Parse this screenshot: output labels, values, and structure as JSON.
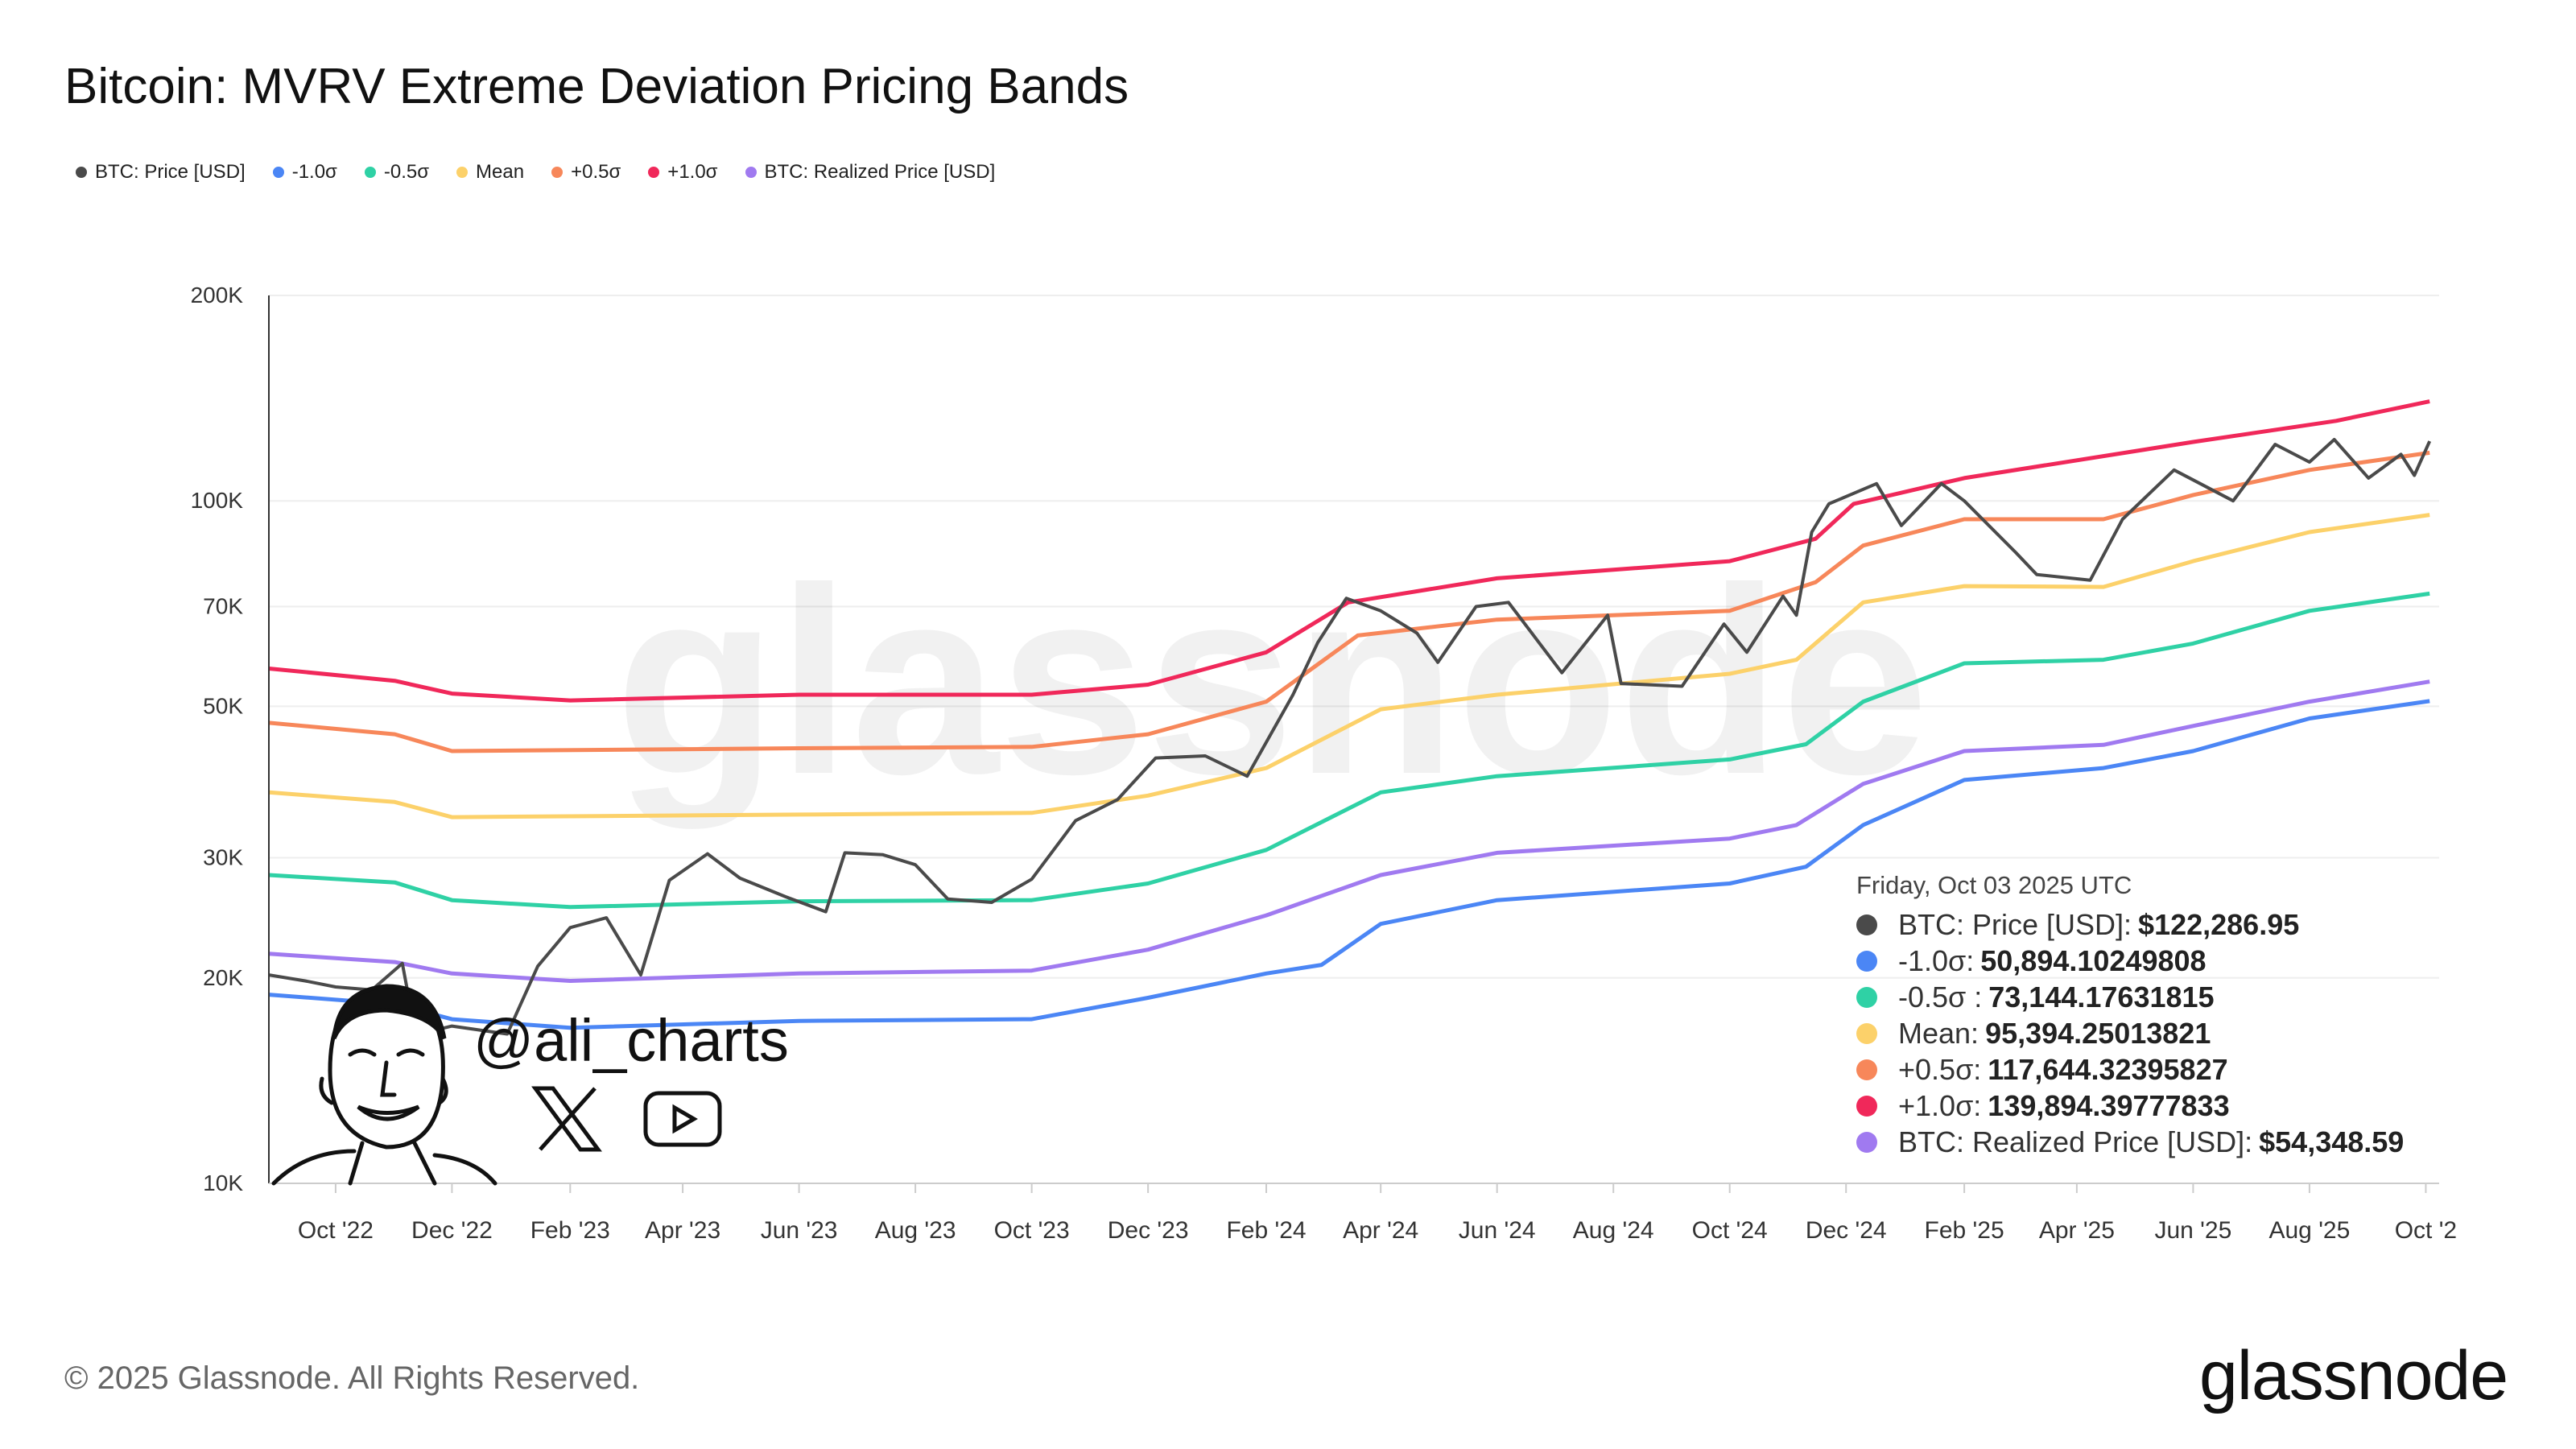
{
  "chart_data": {
    "type": "line",
    "title": "Bitcoin: MVRV Extreme Deviation Pricing Bands",
    "y_scale": "log",
    "ylim": [
      10000,
      200000
    ],
    "y_ticks": [
      {
        "v": 10000,
        "label": "10K"
      },
      {
        "v": 20000,
        "label": "20K"
      },
      {
        "v": 30000,
        "label": "30K"
      },
      {
        "v": 50000,
        "label": "50K"
      },
      {
        "v": 70000,
        "label": "70K"
      },
      {
        "v": 100000,
        "label": "100K"
      },
      {
        "v": 200000,
        "label": "200K"
      }
    ],
    "xlim": [
      "2022-08-27",
      "2025-10-08"
    ],
    "x_ticks": [
      {
        "d": "2022-10-01",
        "label": "Oct '22"
      },
      {
        "d": "2022-12-01",
        "label": "Dec '22"
      },
      {
        "d": "2023-02-01",
        "label": "Feb '23"
      },
      {
        "d": "2023-04-01",
        "label": "Apr '23"
      },
      {
        "d": "2023-06-01",
        "label": "Jun '23"
      },
      {
        "d": "2023-08-01",
        "label": "Aug '23"
      },
      {
        "d": "2023-10-01",
        "label": "Oct '23"
      },
      {
        "d": "2023-12-01",
        "label": "Dec '23"
      },
      {
        "d": "2024-02-01",
        "label": "Feb '24"
      },
      {
        "d": "2024-04-01",
        "label": "Apr '24"
      },
      {
        "d": "2024-06-01",
        "label": "Jun '24"
      },
      {
        "d": "2024-08-01",
        "label": "Aug '24"
      },
      {
        "d": "2024-10-01",
        "label": "Oct '24"
      },
      {
        "d": "2024-12-01",
        "label": "Dec '24"
      },
      {
        "d": "2025-02-01",
        "label": "Feb '25"
      },
      {
        "d": "2025-04-01",
        "label": "Apr '25"
      },
      {
        "d": "2025-06-01",
        "label": "Jun '25"
      },
      {
        "d": "2025-08-01",
        "label": "Aug '25"
      },
      {
        "d": "2025-10-01",
        "label": "Oct '2"
      }
    ],
    "grid": true,
    "legend_position": "top-left",
    "series": [
      {
        "name": "+1.0σ",
        "color": "#f0285a",
        "points": [
          [
            "2022-08-27",
            56800
          ],
          [
            "2022-11-01",
            54500
          ],
          [
            "2022-12-01",
            52200
          ],
          [
            "2023-02-01",
            51000
          ],
          [
            "2023-06-01",
            52000
          ],
          [
            "2023-10-01",
            52000
          ],
          [
            "2023-12-01",
            53800
          ],
          [
            "2024-02-01",
            60000
          ],
          [
            "2024-03-15",
            71000
          ],
          [
            "2024-06-01",
            77000
          ],
          [
            "2024-10-01",
            81600
          ],
          [
            "2024-11-15",
            88000
          ],
          [
            "2024-12-05",
            99000
          ],
          [
            "2025-02-01",
            108000
          ],
          [
            "2025-06-01",
            122000
          ],
          [
            "2025-08-15",
            131000
          ],
          [
            "2025-10-03",
            139894.39777833
          ]
        ]
      },
      {
        "name": "+0.5σ",
        "color": "#f7875a",
        "points": [
          [
            "2022-08-27",
            47300
          ],
          [
            "2022-11-01",
            45500
          ],
          [
            "2022-12-01",
            43000
          ],
          [
            "2023-06-01",
            43400
          ],
          [
            "2023-10-01",
            43600
          ],
          [
            "2023-12-01",
            45500
          ],
          [
            "2024-02-01",
            50800
          ],
          [
            "2024-03-20",
            63500
          ],
          [
            "2024-06-01",
            67000
          ],
          [
            "2024-10-01",
            69000
          ],
          [
            "2024-11-15",
            76000
          ],
          [
            "2024-12-10",
            86000
          ],
          [
            "2025-02-01",
            94000
          ],
          [
            "2025-04-15",
            94000
          ],
          [
            "2025-06-01",
            102000
          ],
          [
            "2025-08-01",
            111000
          ],
          [
            "2025-10-03",
            117644.32395827
          ]
        ]
      },
      {
        "name": "Mean",
        "color": "#fcd16a",
        "points": [
          [
            "2022-08-27",
            37400
          ],
          [
            "2022-11-01",
            36200
          ],
          [
            "2022-12-01",
            34400
          ],
          [
            "2023-06-01",
            34700
          ],
          [
            "2023-10-01",
            34900
          ],
          [
            "2023-12-01",
            37000
          ],
          [
            "2024-02-01",
            40600
          ],
          [
            "2024-04-01",
            49500
          ],
          [
            "2024-06-01",
            52000
          ],
          [
            "2024-10-01",
            55800
          ],
          [
            "2024-11-05",
            58500
          ],
          [
            "2024-12-10",
            71000
          ],
          [
            "2025-02-01",
            75000
          ],
          [
            "2025-04-15",
            74800
          ],
          [
            "2025-06-01",
            81600
          ],
          [
            "2025-08-01",
            90000
          ],
          [
            "2025-10-03",
            95394.25013821
          ]
        ]
      },
      {
        "name": "-0.5σ",
        "color": "#2fd1a5",
        "points": [
          [
            "2022-08-27",
            28300
          ],
          [
            "2022-11-01",
            27600
          ],
          [
            "2022-12-01",
            26000
          ],
          [
            "2023-02-01",
            25400
          ],
          [
            "2023-06-01",
            25900
          ],
          [
            "2023-10-01",
            26000
          ],
          [
            "2023-12-01",
            27500
          ],
          [
            "2024-02-01",
            30800
          ],
          [
            "2024-04-01",
            37400
          ],
          [
            "2024-06-01",
            39500
          ],
          [
            "2024-10-01",
            41800
          ],
          [
            "2024-11-10",
            44000
          ],
          [
            "2024-12-10",
            50800
          ],
          [
            "2025-02-01",
            57800
          ],
          [
            "2025-04-15",
            58500
          ],
          [
            "2025-06-01",
            61800
          ],
          [
            "2025-08-01",
            69000
          ],
          [
            "2025-10-03",
            73144.17631815
          ]
        ]
      },
      {
        "name": "BTC: Realized Price [USD]",
        "color": "#a07af0",
        "points": [
          [
            "2022-08-27",
            21700
          ],
          [
            "2022-11-01",
            21100
          ],
          [
            "2022-12-01",
            20300
          ],
          [
            "2023-02-01",
            19800
          ],
          [
            "2023-06-01",
            20300
          ],
          [
            "2023-10-01",
            20500
          ],
          [
            "2023-12-01",
            22000
          ],
          [
            "2024-02-01",
            24700
          ],
          [
            "2024-04-01",
            28300
          ],
          [
            "2024-06-01",
            30500
          ],
          [
            "2024-10-01",
            32000
          ],
          [
            "2024-11-05",
            33500
          ],
          [
            "2024-12-10",
            38500
          ],
          [
            "2025-02-01",
            43000
          ],
          [
            "2025-04-15",
            43900
          ],
          [
            "2025-06-01",
            46800
          ],
          [
            "2025-08-01",
            50800
          ],
          [
            "2025-10-03",
            54348.59
          ]
        ]
      },
      {
        "name": "-1.0σ",
        "color": "#4b86f5",
        "points": [
          [
            "2022-08-27",
            18900
          ],
          [
            "2022-11-01",
            18300
          ],
          [
            "2022-12-01",
            17400
          ],
          [
            "2023-02-01",
            16900
          ],
          [
            "2023-06-01",
            17300
          ],
          [
            "2023-10-01",
            17400
          ],
          [
            "2023-12-01",
            18700
          ],
          [
            "2024-02-01",
            20300
          ],
          [
            "2024-03-01",
            20900
          ],
          [
            "2024-04-01",
            24000
          ],
          [
            "2024-06-01",
            26000
          ],
          [
            "2024-10-01",
            27500
          ],
          [
            "2024-11-10",
            29100
          ],
          [
            "2024-12-10",
            33500
          ],
          [
            "2025-02-01",
            39000
          ],
          [
            "2025-04-15",
            40600
          ],
          [
            "2025-06-01",
            43000
          ],
          [
            "2025-08-01",
            48000
          ],
          [
            "2025-10-03",
            50894.10249808
          ]
        ]
      },
      {
        "name": "BTC: Price [USD]",
        "color": "#4a4a4a",
        "points": [
          [
            "2022-08-27",
            20200
          ],
          [
            "2022-09-15",
            19800
          ],
          [
            "2022-10-01",
            19400
          ],
          [
            "2022-10-20",
            19200
          ],
          [
            "2022-11-05",
            21000
          ],
          [
            "2022-11-12",
            16500
          ],
          [
            "2022-12-01",
            17000
          ],
          [
            "2022-12-30",
            16550
          ],
          [
            "2023-01-15",
            20800
          ],
          [
            "2023-02-01",
            23700
          ],
          [
            "2023-02-20",
            24500
          ],
          [
            "2023-03-10",
            20200
          ],
          [
            "2023-03-25",
            27800
          ],
          [
            "2023-04-14",
            30400
          ],
          [
            "2023-05-01",
            28000
          ],
          [
            "2023-05-25",
            26300
          ],
          [
            "2023-06-15",
            25000
          ],
          [
            "2023-06-25",
            30500
          ],
          [
            "2023-07-15",
            30300
          ],
          [
            "2023-08-01",
            29300
          ],
          [
            "2023-08-18",
            26100
          ],
          [
            "2023-09-10",
            25800
          ],
          [
            "2023-10-01",
            27900
          ],
          [
            "2023-10-24",
            34000
          ],
          [
            "2023-11-15",
            36500
          ],
          [
            "2023-12-05",
            42000
          ],
          [
            "2023-12-31",
            42300
          ],
          [
            "2024-01-22",
            39500
          ],
          [
            "2024-02-15",
            52000
          ],
          [
            "2024-02-28",
            62000
          ],
          [
            "2024-03-14",
            72000
          ],
          [
            "2024-04-01",
            69000
          ],
          [
            "2024-04-20",
            64000
          ],
          [
            "2024-05-01",
            58000
          ],
          [
            "2024-05-21",
            70000
          ],
          [
            "2024-06-07",
            71000
          ],
          [
            "2024-07-05",
            56000
          ],
          [
            "2024-07-29",
            68000
          ],
          [
            "2024-08-05",
            54000
          ],
          [
            "2024-09-06",
            53500
          ],
          [
            "2024-09-28",
            66000
          ],
          [
            "2024-10-10",
            60000
          ],
          [
            "2024-10-29",
            72500
          ],
          [
            "2024-11-05",
            68000
          ],
          [
            "2024-11-13",
            90000
          ],
          [
            "2024-11-22",
            99000
          ],
          [
            "2024-12-17",
            106000
          ],
          [
            "2024-12-30",
            92000
          ],
          [
            "2025-01-20",
            106000
          ],
          [
            "2025-02-01",
            100000
          ],
          [
            "2025-02-28",
            84000
          ],
          [
            "2025-03-11",
            78000
          ],
          [
            "2025-04-08",
            76500
          ],
          [
            "2025-04-25",
            94000
          ],
          [
            "2025-05-22",
            111000
          ],
          [
            "2025-06-22",
            100000
          ],
          [
            "2025-07-14",
            121000
          ],
          [
            "2025-08-01",
            114000
          ],
          [
            "2025-08-14",
            123000
          ],
          [
            "2025-09-01",
            108000
          ],
          [
            "2025-09-18",
            117000
          ],
          [
            "2025-09-25",
            109000
          ],
          [
            "2025-10-03",
            122286.95
          ]
        ]
      }
    ]
  },
  "legend": [
    {
      "label": "BTC: Price [USD]",
      "color": "#4a4a4a"
    },
    {
      "label": "-1.0σ",
      "color": "#4b86f5"
    },
    {
      "label": "-0.5σ",
      "color": "#2fd1a5"
    },
    {
      "label": "Mean",
      "color": "#fcd16a"
    },
    {
      "label": "+0.5σ",
      "color": "#f7875a"
    },
    {
      "label": "+1.0σ",
      "color": "#f0285a"
    },
    {
      "label": "BTC: Realized Price [USD]",
      "color": "#a07af0"
    }
  ],
  "tooltip": {
    "date": "Friday, Oct 03 2025 UTC",
    "rows": [
      {
        "label": "BTC: Price [USD]:",
        "value": "$122,286.95",
        "color": "#4a4a4a"
      },
      {
        "label": "-1.0σ:",
        "value": "50,894.10249808",
        "color": "#4b86f5"
      },
      {
        "label": "-0.5σ :",
        "value": "73,144.17631815",
        "color": "#2fd1a5"
      },
      {
        "label": "Mean:",
        "value": "95,394.25013821",
        "color": "#fcd16a"
      },
      {
        "label": "+0.5σ:",
        "value": "117,644.32395827",
        "color": "#f7875a"
      },
      {
        "label": "+1.0σ:",
        "value": "139,894.39777833",
        "color": "#f0285a"
      },
      {
        "label": "BTC: Realized Price [USD]:",
        "value": "$54,348.59",
        "color": "#a07af0"
      }
    ]
  },
  "watermark": "glassnode",
  "overlay": {
    "handle": "@ali_charts",
    "icons": [
      "x-icon",
      "youtube-icon"
    ]
  },
  "footer": {
    "copyright": "© 2025 Glassnode. All Rights Reserved.",
    "logo": "glassnode"
  }
}
